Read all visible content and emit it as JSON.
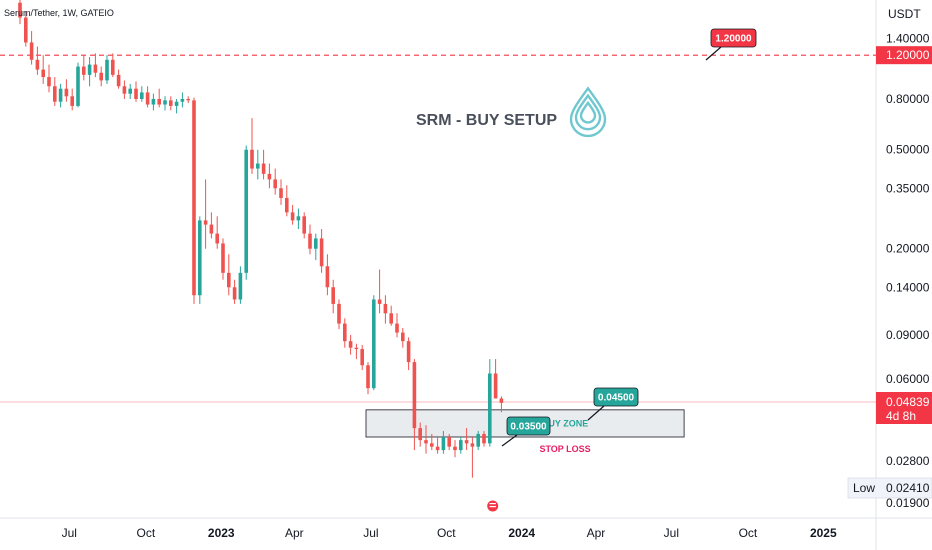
{
  "symbol_header": "Serum/Tether, 1W, GATEIO",
  "colors": {
    "up": "#26a69a",
    "down": "#ef5350",
    "target": "#f23645",
    "current_price": "#f23645",
    "zone_fill": "#e9ecef",
    "zone_text": "#26a69a",
    "stop_text": "#e91e63",
    "logo": "#6fc8cf"
  },
  "title": "SRM - BUY SETUP",
  "logo_icon": "drop-icon",
  "currency_label": "USDT",
  "y_axis_labels": [
    "1.40000",
    "0.80000",
    "0.50000",
    "0.35000",
    "0.20000",
    "0.14000",
    "0.09000",
    "0.06000",
    "0.02800",
    "0.01900"
  ],
  "x_axis_labels": [
    {
      "label": "Jul",
      "bold": false
    },
    {
      "label": "Oct",
      "bold": false
    },
    {
      "label": "2023",
      "bold": true
    },
    {
      "label": "Apr",
      "bold": false
    },
    {
      "label": "Jul",
      "bold": false
    },
    {
      "label": "Oct",
      "bold": false
    },
    {
      "label": "2024",
      "bold": true
    },
    {
      "label": "Apr",
      "bold": false
    },
    {
      "label": "Jul",
      "bold": false
    },
    {
      "label": "Oct",
      "bold": false
    },
    {
      "label": "2025",
      "bold": true
    }
  ],
  "target": {
    "label": "1.20000",
    "axis_label": "1.20000",
    "value": 1.2
  },
  "current_price": {
    "value": 0.04839,
    "label": "0.04839",
    "countdown": "4d 8h"
  },
  "low": {
    "label": "Low",
    "value": "0.02410"
  },
  "buy_zone": {
    "label": "BUY ZONE",
    "low": 0.035,
    "high": 0.045
  },
  "entry_low_tag": "0.03500",
  "entry_high_tag": "0.04500",
  "stop_loss_label": "STOP LOSS",
  "chart_data": {
    "type": "candlestick",
    "title": "SRM - BUY SETUP",
    "series_name": "Serum/Tether, 1W, GATEIO",
    "y_scale": "log",
    "ylim": [
      0.017,
      2.0
    ],
    "y_ticks": [
      1.4,
      0.8,
      0.5,
      0.35,
      0.2,
      0.14,
      0.09,
      0.06,
      0.028,
      0.019
    ],
    "x_ticks": [
      "Jul",
      "Oct",
      "2023",
      "Apr",
      "Jul",
      "Oct",
      "2024",
      "Apr",
      "Jul",
      "Oct",
      "2025"
    ],
    "candles": [
      [
        1.95,
        2.2,
        1.6,
        1.7
      ],
      [
        1.7,
        1.8,
        1.3,
        1.35
      ],
      [
        1.35,
        1.5,
        1.1,
        1.15
      ],
      [
        1.15,
        1.3,
        1.0,
        1.05
      ],
      [
        1.05,
        1.2,
        0.92,
        0.98
      ],
      [
        0.98,
        1.1,
        0.85,
        0.9
      ],
      [
        0.9,
        0.98,
        0.75,
        0.78
      ],
      [
        0.78,
        0.92,
        0.74,
        0.88
      ],
      [
        0.88,
        0.96,
        0.78,
        0.82
      ],
      [
        0.82,
        0.88,
        0.72,
        0.75
      ],
      [
        0.75,
        1.12,
        0.74,
        1.08
      ],
      [
        1.08,
        1.2,
        0.95,
        1.0
      ],
      [
        1.0,
        1.18,
        0.9,
        1.1
      ],
      [
        1.1,
        1.22,
        0.98,
        1.02
      ],
      [
        1.02,
        1.08,
        0.9,
        0.95
      ],
      [
        0.95,
        1.2,
        0.92,
        1.15
      ],
      [
        1.15,
        1.22,
        0.98,
        1.0
      ],
      [
        1.0,
        1.05,
        0.88,
        0.9
      ],
      [
        0.9,
        0.95,
        0.8,
        0.84
      ],
      [
        0.84,
        0.92,
        0.8,
        0.88
      ],
      [
        0.88,
        0.94,
        0.78,
        0.8
      ],
      [
        0.8,
        0.9,
        0.78,
        0.85
      ],
      [
        0.85,
        0.9,
        0.74,
        0.76
      ],
      [
        0.76,
        0.84,
        0.72,
        0.8
      ],
      [
        0.8,
        0.88,
        0.74,
        0.76
      ],
      [
        0.76,
        0.82,
        0.72,
        0.79
      ],
      [
        0.79,
        0.82,
        0.72,
        0.75
      ],
      [
        0.75,
        0.8,
        0.7,
        0.78
      ],
      [
        0.78,
        0.85,
        0.74,
        0.8
      ],
      [
        0.8,
        0.82,
        0.77,
        0.79
      ],
      [
        0.79,
        0.81,
        0.12,
        0.13
      ],
      [
        0.13,
        0.27,
        0.12,
        0.26
      ],
      [
        0.26,
        0.38,
        0.2,
        0.25
      ],
      [
        0.25,
        0.28,
        0.22,
        0.23
      ],
      [
        0.23,
        0.27,
        0.2,
        0.21
      ],
      [
        0.21,
        0.22,
        0.15,
        0.16
      ],
      [
        0.16,
        0.19,
        0.13,
        0.14
      ],
      [
        0.14,
        0.15,
        0.12,
        0.125
      ],
      [
        0.125,
        0.17,
        0.12,
        0.16
      ],
      [
        0.16,
        0.52,
        0.15,
        0.5
      ],
      [
        0.5,
        0.67,
        0.4,
        0.42
      ],
      [
        0.42,
        0.5,
        0.38,
        0.44
      ],
      [
        0.44,
        0.5,
        0.38,
        0.4
      ],
      [
        0.4,
        0.44,
        0.35,
        0.38
      ],
      [
        0.38,
        0.42,
        0.33,
        0.35
      ],
      [
        0.35,
        0.38,
        0.3,
        0.32
      ],
      [
        0.32,
        0.36,
        0.27,
        0.28
      ],
      [
        0.28,
        0.3,
        0.25,
        0.26
      ],
      [
        0.26,
        0.29,
        0.24,
        0.27
      ],
      [
        0.27,
        0.28,
        0.22,
        0.23
      ],
      [
        0.23,
        0.25,
        0.19,
        0.2
      ],
      [
        0.2,
        0.23,
        0.18,
        0.22
      ],
      [
        0.22,
        0.24,
        0.16,
        0.17
      ],
      [
        0.17,
        0.19,
        0.13,
        0.14
      ],
      [
        0.14,
        0.15,
        0.11,
        0.12
      ],
      [
        0.12,
        0.125,
        0.095,
        0.1
      ],
      [
        0.1,
        0.105,
        0.08,
        0.085
      ],
      [
        0.085,
        0.09,
        0.075,
        0.08
      ],
      [
        0.08,
        0.083,
        0.072,
        0.079
      ],
      [
        0.079,
        0.082,
        0.065,
        0.068
      ],
      [
        0.068,
        0.07,
        0.052,
        0.055
      ],
      [
        0.055,
        0.13,
        0.054,
        0.125
      ],
      [
        0.125,
        0.165,
        0.11,
        0.12
      ],
      [
        0.12,
        0.13,
        0.1,
        0.11
      ],
      [
        0.11,
        0.118,
        0.098,
        0.1
      ],
      [
        0.1,
        0.11,
        0.088,
        0.092
      ],
      [
        0.092,
        0.096,
        0.08,
        0.085
      ],
      [
        0.085,
        0.088,
        0.065,
        0.07
      ],
      [
        0.07,
        0.072,
        0.031,
        0.038
      ],
      [
        0.038,
        0.04,
        0.032,
        0.034
      ],
      [
        0.034,
        0.039,
        0.03,
        0.033
      ],
      [
        0.033,
        0.036,
        0.031,
        0.032
      ],
      [
        0.032,
        0.035,
        0.03,
        0.031
      ],
      [
        0.031,
        0.037,
        0.03,
        0.035
      ],
      [
        0.035,
        0.036,
        0.031,
        0.032
      ],
      [
        0.032,
        0.034,
        0.029,
        0.031
      ],
      [
        0.031,
        0.035,
        0.03,
        0.034
      ],
      [
        0.034,
        0.038,
        0.031,
        0.033
      ],
      [
        0.033,
        0.035,
        0.024,
        0.032
      ],
      [
        0.032,
        0.037,
        0.031,
        0.036
      ],
      [
        0.036,
        0.037,
        0.032,
        0.033
      ],
      [
        0.033,
        0.072,
        0.032,
        0.063
      ],
      [
        0.063,
        0.072,
        0.05,
        0.05
      ],
      [
        0.05,
        0.051,
        0.044,
        0.048
      ]
    ]
  }
}
